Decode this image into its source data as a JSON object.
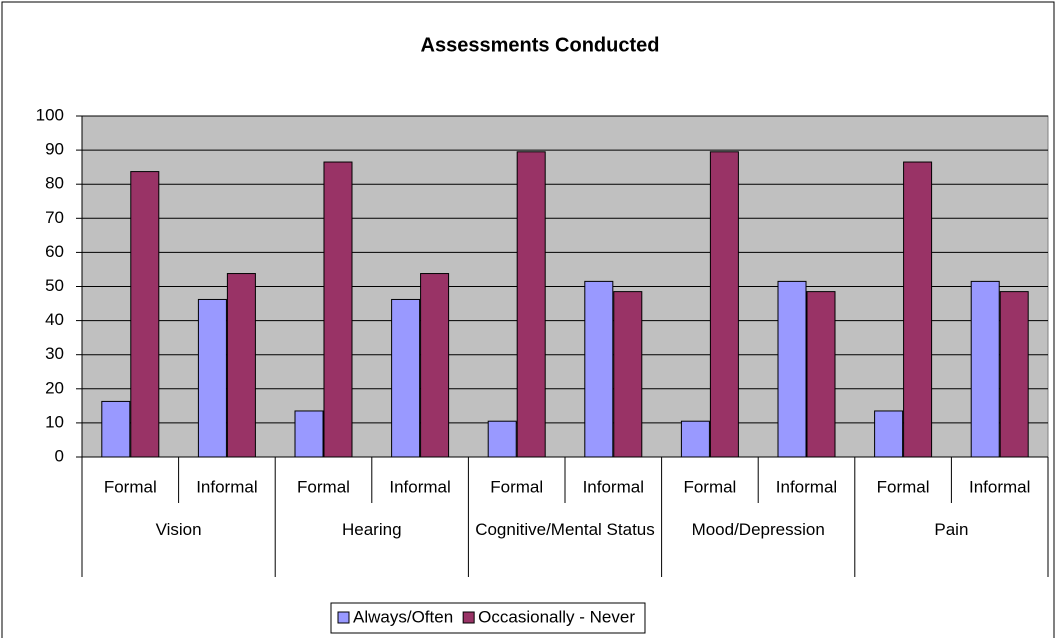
{
  "chart_data": {
    "type": "bar",
    "title": "Assessments Conducted",
    "categories": [
      "Formal",
      "Informal",
      "Formal",
      "Informal",
      "Formal",
      "Informal",
      "Formal",
      "Informal",
      "Formal",
      "Informal"
    ],
    "groups": [
      "Vision",
      "Hearing",
      "Cognitive/Mental Status",
      "Mood/Depression",
      "Pain"
    ],
    "series": [
      {
        "name": "Always/Often",
        "color": "#9999ff",
        "values": [
          16.3,
          46.2,
          13.5,
          46.2,
          10.5,
          51.5,
          10.5,
          51.5,
          13.5,
          51.5
        ]
      },
      {
        "name": "Occasionally - Never",
        "color": "#993366",
        "values": [
          83.7,
          53.8,
          86.5,
          53.8,
          89.5,
          48.5,
          89.5,
          48.5,
          86.5,
          48.5
        ]
      }
    ],
    "ylim": [
      0,
      100
    ],
    "yticks": [
      0,
      10,
      20,
      30,
      40,
      50,
      60,
      70,
      80,
      90,
      100
    ],
    "grid": true,
    "plot_background": "#c0c0c0",
    "legend": "bottom"
  }
}
